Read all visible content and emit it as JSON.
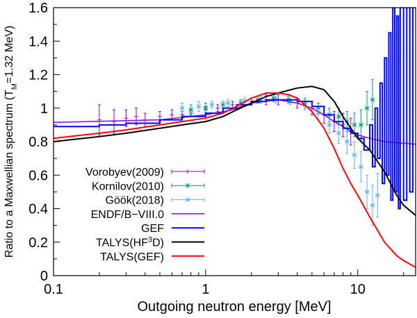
{
  "chart_data": {
    "type": "line",
    "title": "",
    "xlabel": "Outgoing neutron energy [MeV]",
    "ylabel": "Ratio to a Maxwellian spectrum (T_M=1.32 MeV)",
    "ylabel_parts": {
      "pre": "Ratio to a Maxwellian spectrum (T",
      "sub": "M",
      "post": "=1.32 MeV)"
    },
    "xscale": "log",
    "xlim": [
      0.1,
      24
    ],
    "ylim": [
      0,
      1.6
    ],
    "grid": false,
    "legend_position": "bottom-left",
    "x_ticks": [
      {
        "v": 0.1,
        "label": "0.1"
      },
      {
        "v": 1,
        "label": "1"
      },
      {
        "v": 10,
        "label": "10"
      }
    ],
    "y_ticks": [
      {
        "v": 0,
        "label": "0"
      },
      {
        "v": 0.2,
        "label": "0.2"
      },
      {
        "v": 0.4,
        "label": "0.4"
      },
      {
        "v": 0.6,
        "label": "0.6"
      },
      {
        "v": 0.8,
        "label": "0.8"
      },
      {
        "v": 1,
        "label": "1"
      },
      {
        "v": 1.2,
        "label": "1.2"
      },
      {
        "v": 1.4,
        "label": "1.4"
      },
      {
        "v": 1.6,
        "label": "1.6"
      }
    ],
    "series": [
      {
        "name": "Vorobyev(2009)",
        "kind": "points",
        "color": "#9400d3",
        "marker": "plus",
        "points": [
          [
            0.2,
            0.93,
            0.09
          ],
          [
            0.25,
            0.92,
            0.07
          ],
          [
            0.3,
            0.94,
            0.05
          ],
          [
            0.35,
            0.95,
            0.05
          ],
          [
            0.4,
            0.93,
            0.04
          ],
          [
            0.5,
            0.95,
            0.03
          ],
          [
            0.6,
            0.96,
            0.03
          ],
          [
            0.7,
            0.96,
            0.02
          ],
          [
            0.8,
            0.97,
            0.02
          ],
          [
            1.0,
            0.99,
            0.02
          ],
          [
            1.2,
            1.0,
            0.02
          ],
          [
            1.5,
            1.02,
            0.02
          ],
          [
            2.0,
            1.04,
            0.02
          ],
          [
            2.5,
            1.05,
            0.03
          ],
          [
            3.0,
            1.05,
            0.03
          ],
          [
            4.0,
            1.03,
            0.03
          ],
          [
            5.0,
            1.0,
            0.04
          ],
          [
            6.0,
            0.96,
            0.05
          ],
          [
            7.0,
            0.92,
            0.06
          ],
          [
            8.0,
            0.9,
            0.07
          ],
          [
            9.0,
            0.86,
            0.08
          ]
        ]
      },
      {
        "name": "Kornilov(2010)",
        "kind": "points",
        "color": "#009e73",
        "marker": "cross",
        "points": [
          [
            0.8,
            0.99,
            0.03
          ],
          [
            1.0,
            1.0,
            0.03
          ],
          [
            1.3,
            1.02,
            0.02
          ],
          [
            1.7,
            1.03,
            0.02
          ],
          [
            2.2,
            1.05,
            0.02
          ],
          [
            2.8,
            1.06,
            0.02
          ],
          [
            3.5,
            1.05,
            0.02
          ],
          [
            4.5,
            1.03,
            0.03
          ],
          [
            5.5,
            1.0,
            0.03
          ],
          [
            6.5,
            0.96,
            0.04
          ],
          [
            7.5,
            0.95,
            0.05
          ],
          [
            8.5,
            0.92,
            0.06
          ],
          [
            9.5,
            0.9,
            0.07
          ],
          [
            10.5,
            0.9,
            0.09
          ],
          [
            11.5,
            1.0,
            0.1
          ],
          [
            12.5,
            1.05,
            0.12
          ]
        ]
      },
      {
        "name": "Göök(2018)",
        "kind": "points",
        "color": "#56b4e9",
        "marker": "star",
        "points": [
          [
            0.7,
            1.0,
            0.03
          ],
          [
            0.9,
            1.01,
            0.03
          ],
          [
            1.1,
            1.02,
            0.02
          ],
          [
            1.4,
            1.03,
            0.02
          ],
          [
            1.8,
            1.04,
            0.02
          ],
          [
            2.3,
            1.05,
            0.02
          ],
          [
            2.9,
            1.05,
            0.02
          ],
          [
            3.6,
            1.04,
            0.02
          ],
          [
            4.5,
            1.02,
            0.03
          ],
          [
            5.5,
            0.97,
            0.04
          ],
          [
            6.5,
            0.9,
            0.05
          ],
          [
            7.5,
            0.85,
            0.06
          ],
          [
            8.5,
            0.8,
            0.07
          ],
          [
            9.5,
            0.72,
            0.08
          ],
          [
            10.5,
            0.65,
            0.09
          ],
          [
            11.5,
            0.5,
            0.1
          ],
          [
            12.5,
            0.42,
            0.12
          ],
          [
            13.5,
            0.48,
            0.13
          ]
        ]
      },
      {
        "name": "ENDF/B−VIII.0",
        "kind": "line",
        "color": "#9400d3",
        "width": 1.5,
        "x": [
          0.1,
          0.3,
          0.5,
          1,
          1.5,
          2,
          3,
          4,
          5,
          6,
          7,
          8,
          10,
          12,
          15,
          20,
          24
        ],
        "y": [
          0.915,
          0.925,
          0.93,
          0.96,
          0.99,
          1.03,
          1.05,
          1.03,
          1.0,
          0.96,
          0.92,
          0.89,
          0.84,
          0.82,
          0.8,
          0.79,
          0.785
        ]
      },
      {
        "name": "GEF",
        "kind": "step",
        "color": "#0000ff",
        "width": 2,
        "x": [
          0.1,
          0.2,
          0.3,
          0.5,
          0.7,
          1,
          1.3,
          1.6,
          2,
          2.5,
          3,
          4,
          5,
          6,
          7,
          8,
          9,
          10,
          11,
          12,
          12.5,
          13,
          13.5,
          14,
          14.5,
          15,
          15.5,
          16,
          16.5,
          17,
          17.5,
          18,
          18.5,
          19,
          20,
          21,
          22,
          23
        ],
        "y": [
          0.89,
          0.9,
          0.91,
          0.93,
          0.95,
          0.97,
          1.0,
          1.02,
          1.04,
          1.05,
          1.05,
          1.04,
          1.01,
          0.96,
          0.92,
          0.88,
          0.85,
          0.82,
          0.75,
          0.9,
          0.65,
          1.0,
          0.7,
          1.15,
          0.55,
          1.3,
          0.6,
          1.45,
          0.45,
          1.6,
          0.5,
          1.55,
          0.4,
          1.6,
          0.45,
          1.6,
          0.5,
          1.6
        ]
      },
      {
        "name": "TALYS(HF³D)",
        "label_parts": {
          "pre": "TALYS(HF",
          "sup": "3",
          "post": "D)"
        },
        "kind": "line",
        "color": "#000000",
        "width": 2,
        "x": [
          0.1,
          0.2,
          0.3,
          0.5,
          0.7,
          1,
          1.3,
          1.6,
          2,
          2.5,
          3,
          4,
          5,
          6,
          7,
          8,
          9,
          10,
          12,
          15,
          18,
          20,
          24
        ],
        "y": [
          0.8,
          0.83,
          0.85,
          0.88,
          0.9,
          0.92,
          0.95,
          0.99,
          1.03,
          1.07,
          1.09,
          1.12,
          1.13,
          1.11,
          1.04,
          0.95,
          0.88,
          0.82,
          0.75,
          0.62,
          0.48,
          0.42,
          0.36
        ]
      },
      {
        "name": "TALYS(GEF)",
        "kind": "line",
        "color": "#ff0000",
        "width": 2,
        "x": [
          0.1,
          0.2,
          0.3,
          0.5,
          0.7,
          1,
          1.3,
          1.6,
          2,
          2.5,
          3,
          3.5,
          4,
          5,
          6,
          7,
          8,
          9,
          10,
          12,
          15,
          18,
          20,
          24
        ],
        "y": [
          0.82,
          0.85,
          0.87,
          0.9,
          0.92,
          0.94,
          0.97,
          1.01,
          1.06,
          1.09,
          1.09,
          1.08,
          1.06,
          0.98,
          0.88,
          0.76,
          0.64,
          0.55,
          0.48,
          0.35,
          0.2,
          0.12,
          0.09,
          0.05
        ]
      }
    ]
  }
}
